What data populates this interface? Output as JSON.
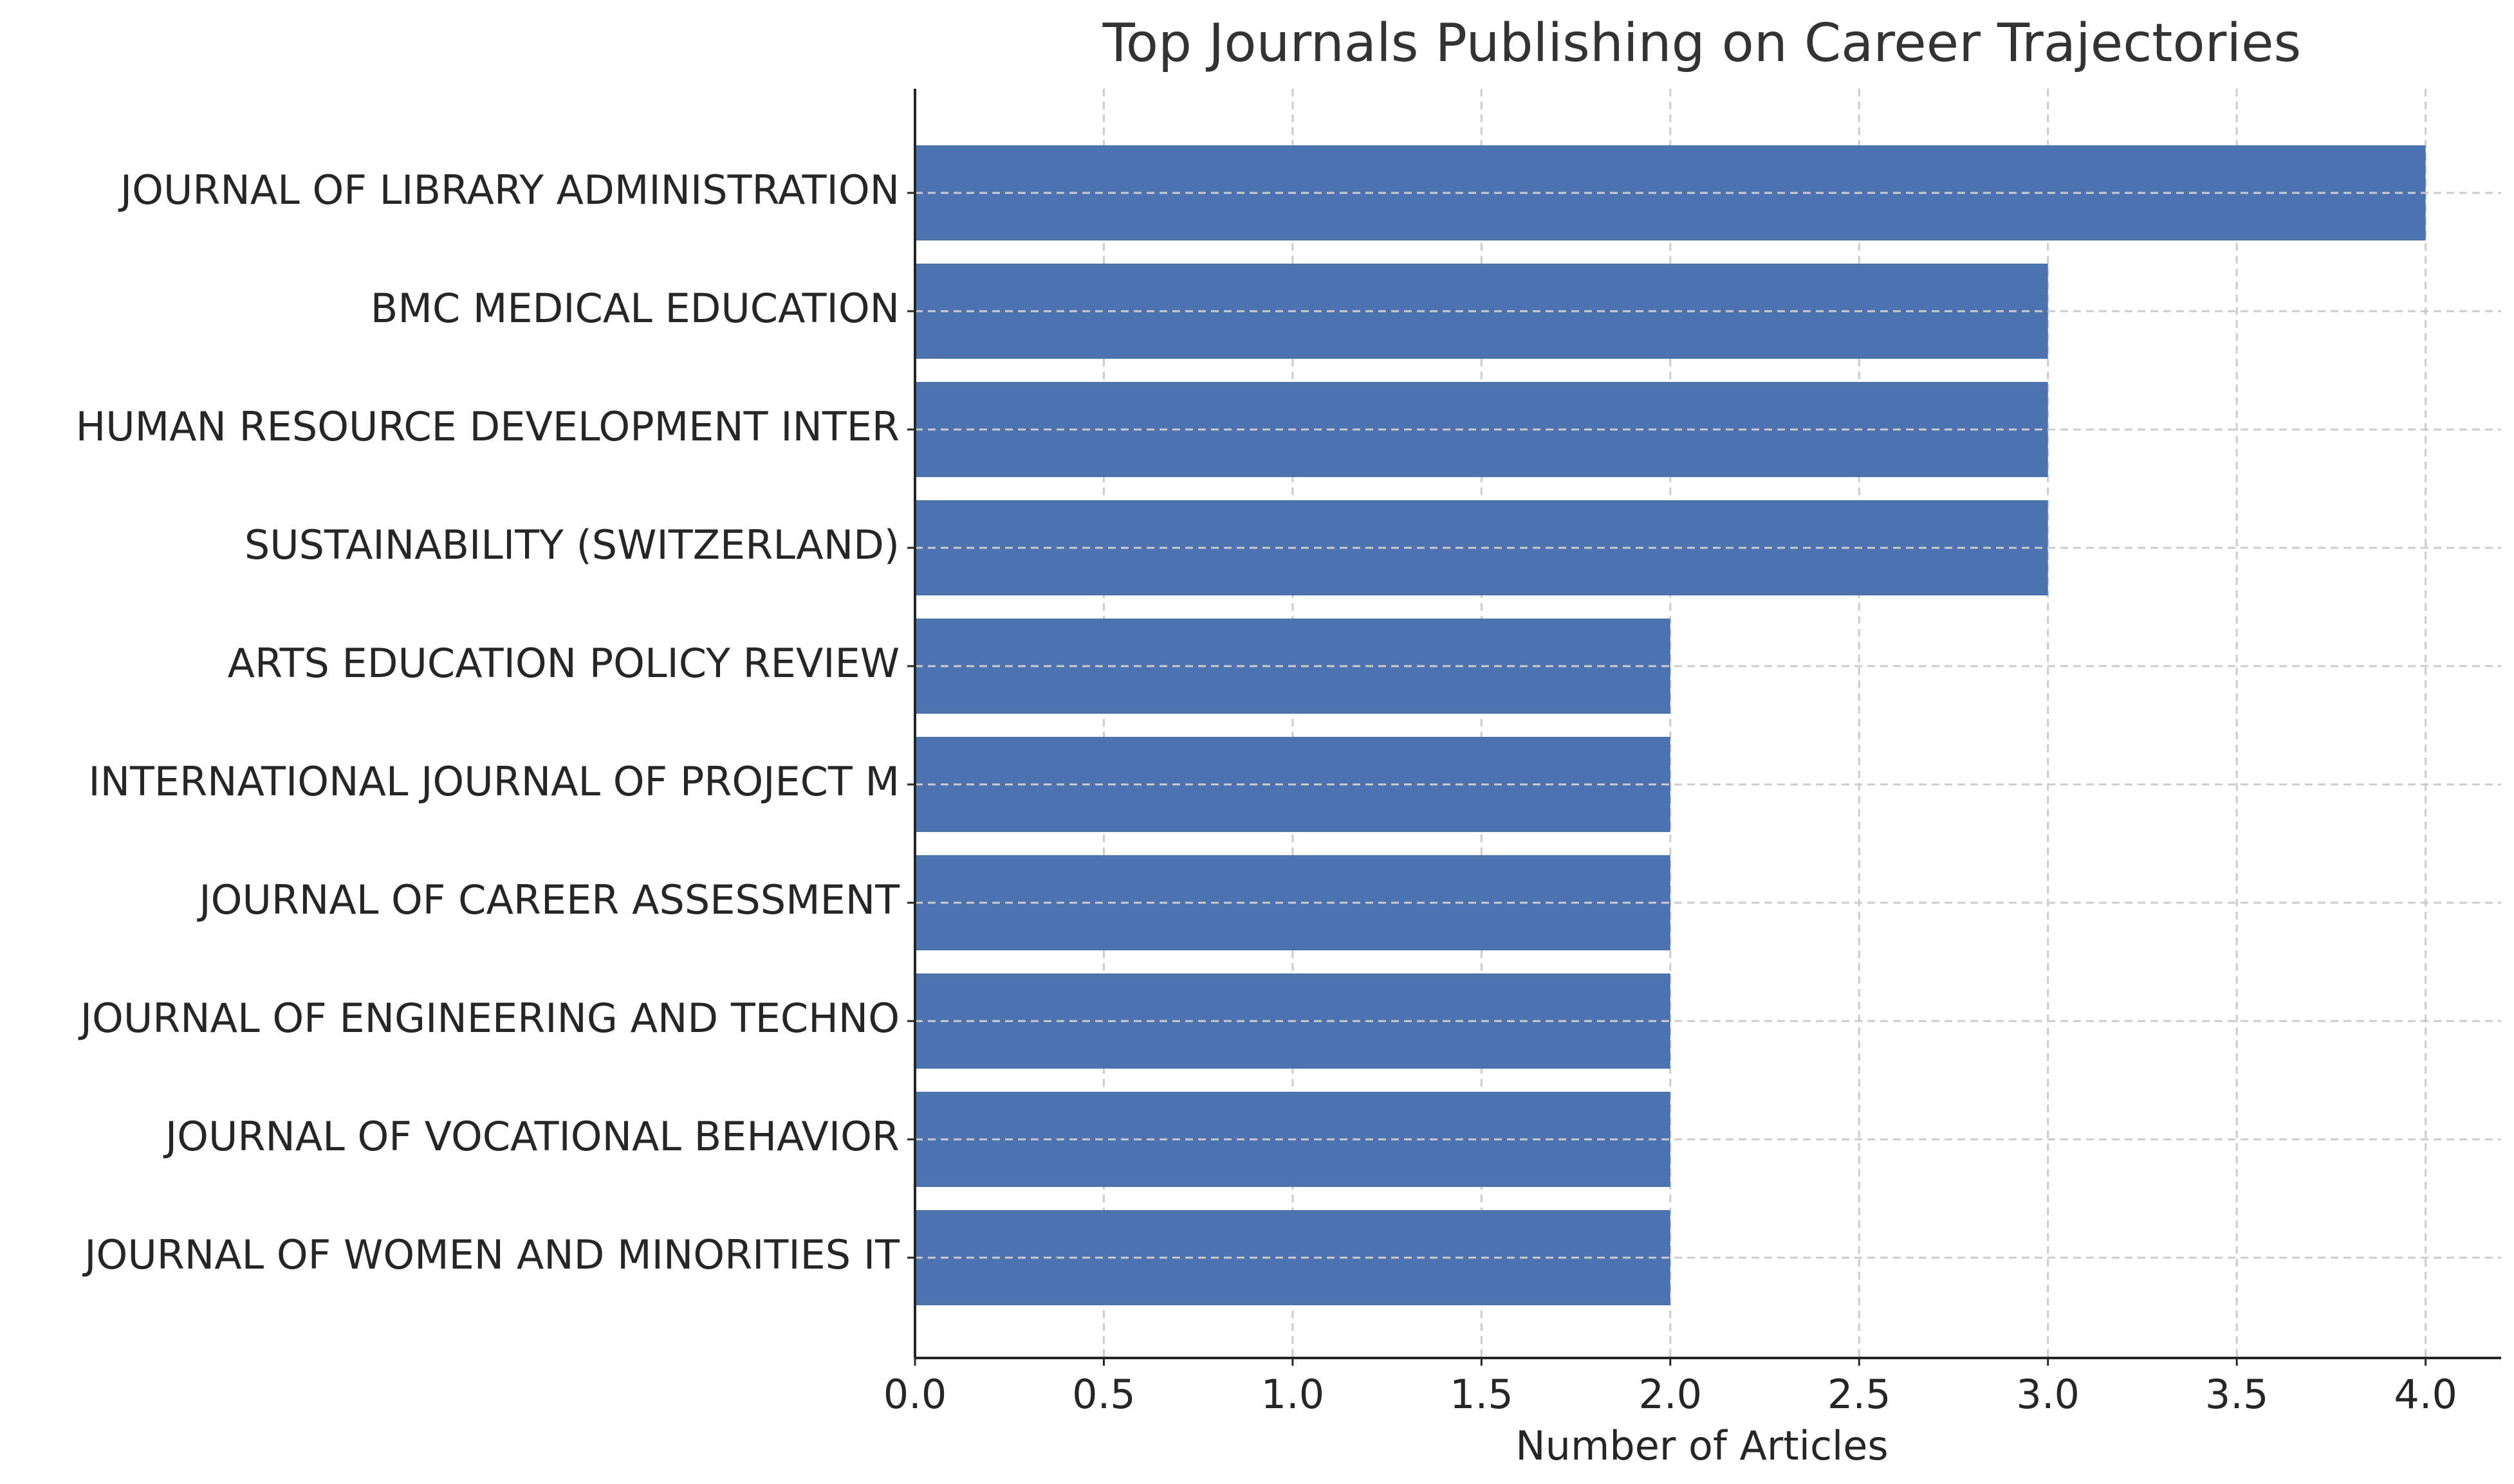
{
  "chart_data": {
    "type": "bar",
    "orientation": "horizontal",
    "title": "Top Journals Publishing on Career Trajectories",
    "xlabel": "Number of Articles",
    "ylabel": "",
    "categories": [
      "JOURNAL OF LIBRARY ADMINISTRATION",
      "BMC MEDICAL EDUCATION",
      "HUMAN RESOURCE DEVELOPMENT INTER",
      "SUSTAINABILITY (SWITZERLAND)",
      "ARTS EDUCATION POLICY REVIEW",
      "INTERNATIONAL JOURNAL OF PROJECT M",
      "JOURNAL OF CAREER ASSESSMENT",
      "JOURNAL OF ENGINEERING AND TECHNO",
      "JOURNAL OF VOCATIONAL BEHAVIOR",
      "JOURNAL OF WOMEN AND MINORITIES IT"
    ],
    "values": [
      4,
      3,
      3,
      3,
      2,
      2,
      2,
      2,
      2,
      2
    ],
    "xlim": [
      0,
      4.2
    ],
    "xticks": [
      0.0,
      0.5,
      1.0,
      1.5,
      2.0,
      2.5,
      3.0,
      3.5,
      4.0
    ],
    "xtick_labels": [
      "0.0",
      "0.5",
      "1.0",
      "1.5",
      "2.0",
      "2.5",
      "3.0",
      "3.5",
      "4.0"
    ],
    "grid": true,
    "bar_color": "#4c72b0",
    "text_color": "#262626"
  }
}
